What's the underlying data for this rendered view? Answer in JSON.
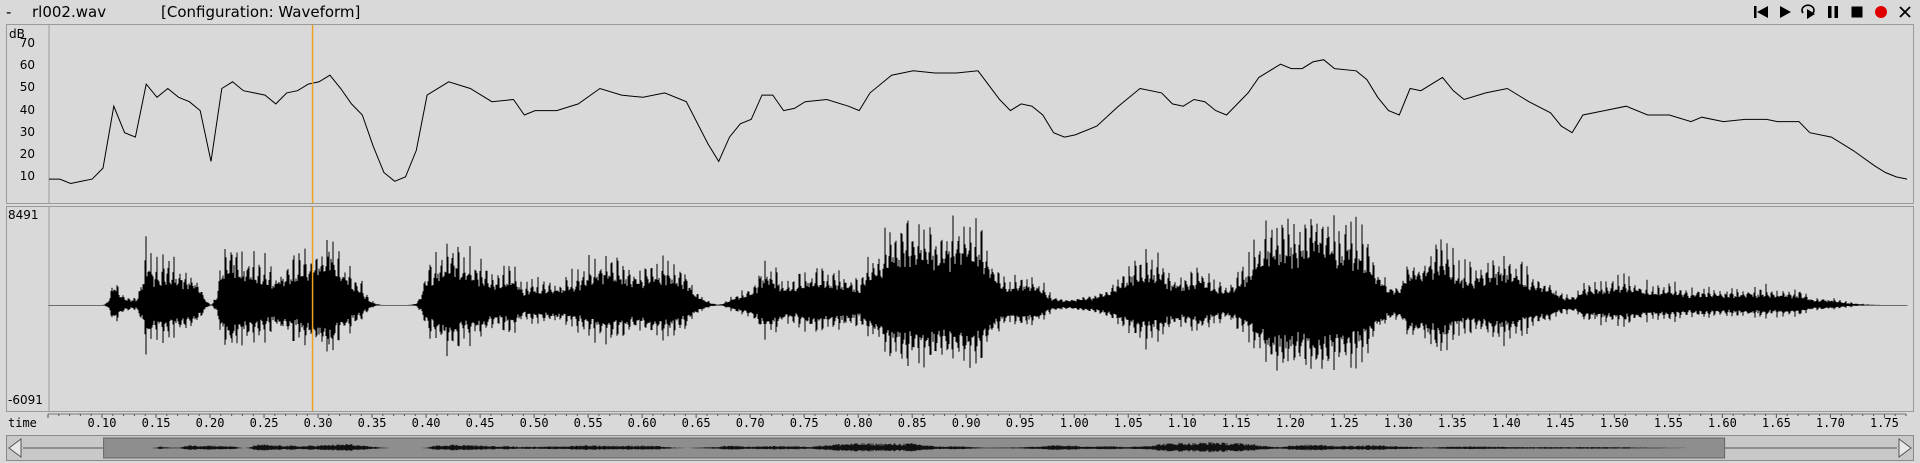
{
  "header": {
    "file_name": "rl002.wav",
    "configuration": "[Configuration: Waveform]",
    "menu_glyph": "-"
  },
  "controls": [
    {
      "name": "skip-to-start-icon"
    },
    {
      "name": "play-icon"
    },
    {
      "name": "loop-play-icon"
    },
    {
      "name": "pause-icon"
    },
    {
      "name": "stop-icon"
    },
    {
      "name": "record-icon",
      "color": "#e00000"
    },
    {
      "name": "close-icon"
    }
  ],
  "energy_panel": {
    "unit_label": "dB",
    "y_ticks": [
      "70",
      "60",
      "50",
      "40",
      "30",
      "20",
      "10"
    ],
    "y_range": [
      0,
      76
    ],
    "curve": [
      [
        0.05,
        9
      ],
      [
        0.06,
        9
      ],
      [
        0.07,
        7
      ],
      [
        0.08,
        8
      ],
      [
        0.09,
        9
      ],
      [
        0.1,
        14
      ],
      [
        0.11,
        42
      ],
      [
        0.12,
        30
      ],
      [
        0.13,
        28
      ],
      [
        0.14,
        52
      ],
      [
        0.15,
        46
      ],
      [
        0.16,
        50
      ],
      [
        0.17,
        46
      ],
      [
        0.18,
        44
      ],
      [
        0.19,
        40
      ],
      [
        0.2,
        17
      ],
      [
        0.21,
        50
      ],
      [
        0.22,
        53
      ],
      [
        0.23,
        49
      ],
      [
        0.24,
        48
      ],
      [
        0.25,
        47
      ],
      [
        0.26,
        43
      ],
      [
        0.27,
        48
      ],
      [
        0.28,
        49
      ],
      [
        0.29,
        52
      ],
      [
        0.3,
        53
      ],
      [
        0.31,
        56
      ],
      [
        0.32,
        50
      ],
      [
        0.33,
        43
      ],
      [
        0.34,
        38
      ],
      [
        0.35,
        24
      ],
      [
        0.36,
        12
      ],
      [
        0.37,
        8
      ],
      [
        0.38,
        10
      ],
      [
        0.39,
        22
      ],
      [
        0.4,
        47
      ],
      [
        0.42,
        53
      ],
      [
        0.44,
        50
      ],
      [
        0.46,
        44
      ],
      [
        0.48,
        45
      ],
      [
        0.49,
        38
      ],
      [
        0.5,
        40
      ],
      [
        0.52,
        40
      ],
      [
        0.54,
        43
      ],
      [
        0.56,
        50
      ],
      [
        0.58,
        47
      ],
      [
        0.6,
        46
      ],
      [
        0.62,
        48
      ],
      [
        0.64,
        44
      ],
      [
        0.66,
        25
      ],
      [
        0.67,
        17
      ],
      [
        0.68,
        28
      ],
      [
        0.69,
        34
      ],
      [
        0.7,
        36
      ],
      [
        0.71,
        47
      ],
      [
        0.72,
        47
      ],
      [
        0.73,
        40
      ],
      [
        0.74,
        41
      ],
      [
        0.75,
        44
      ],
      [
        0.77,
        45
      ],
      [
        0.79,
        42
      ],
      [
        0.8,
        40
      ],
      [
        0.81,
        48
      ],
      [
        0.83,
        56
      ],
      [
        0.85,
        58
      ],
      [
        0.87,
        57
      ],
      [
        0.89,
        57
      ],
      [
        0.91,
        58
      ],
      [
        0.93,
        45
      ],
      [
        0.94,
        40
      ],
      [
        0.95,
        43
      ],
      [
        0.96,
        42
      ],
      [
        0.97,
        38
      ],
      [
        0.98,
        30
      ],
      [
        0.99,
        28
      ],
      [
        1.0,
        29
      ],
      [
        1.02,
        33
      ],
      [
        1.04,
        42
      ],
      [
        1.06,
        50
      ],
      [
        1.08,
        48
      ],
      [
        1.09,
        43
      ],
      [
        1.1,
        42
      ],
      [
        1.11,
        45
      ],
      [
        1.12,
        44
      ],
      [
        1.13,
        40
      ],
      [
        1.14,
        38
      ],
      [
        1.16,
        48
      ],
      [
        1.17,
        55
      ],
      [
        1.18,
        58
      ],
      [
        1.19,
        61
      ],
      [
        1.2,
        59
      ],
      [
        1.21,
        59
      ],
      [
        1.22,
        62
      ],
      [
        1.23,
        63
      ],
      [
        1.24,
        59
      ],
      [
        1.26,
        58
      ],
      [
        1.27,
        54
      ],
      [
        1.28,
        46
      ],
      [
        1.29,
        40
      ],
      [
        1.3,
        38
      ],
      [
        1.31,
        50
      ],
      [
        1.32,
        49
      ],
      [
        1.34,
        55
      ],
      [
        1.35,
        49
      ],
      [
        1.36,
        45
      ],
      [
        1.38,
        48
      ],
      [
        1.4,
        50
      ],
      [
        1.42,
        44
      ],
      [
        1.44,
        39
      ],
      [
        1.45,
        33
      ],
      [
        1.46,
        30
      ],
      [
        1.47,
        38
      ],
      [
        1.49,
        40
      ],
      [
        1.51,
        42
      ],
      [
        1.53,
        38
      ],
      [
        1.55,
        38
      ],
      [
        1.57,
        35
      ],
      [
        1.58,
        37
      ],
      [
        1.6,
        35
      ],
      [
        1.62,
        36
      ],
      [
        1.64,
        36
      ],
      [
        1.65,
        35
      ],
      [
        1.67,
        35
      ],
      [
        1.68,
        30
      ],
      [
        1.7,
        28
      ],
      [
        1.72,
        22
      ],
      [
        1.74,
        15
      ],
      [
        1.75,
        12
      ],
      [
        1.76,
        10
      ],
      [
        1.77,
        9
      ]
    ]
  },
  "waveform_panel": {
    "max_label": "8491",
    "min_label": "-6091",
    "max_value": 8491,
    "min_value": -6091
  },
  "time_axis": {
    "label": "time",
    "ticks": [
      "0.10",
      "0.15",
      "0.20",
      "0.25",
      "0.30",
      "0.35",
      "0.40",
      "0.45",
      "0.50",
      "0.55",
      "0.60",
      "0.65",
      "0.70",
      "0.75",
      "0.80",
      "0.85",
      "0.90",
      "0.95",
      "1.00",
      "1.05",
      "1.10",
      "1.15",
      "1.20",
      "1.25",
      "1.30",
      "1.35",
      "1.40",
      "1.45",
      "1.50",
      "1.55",
      "1.60",
      "1.65",
      "1.70",
      "1.75"
    ],
    "view_start": 0.05,
    "view_end": 1.77
  },
  "cursor": {
    "time": 0.294,
    "color": "#f0a020"
  },
  "scrollbar": {
    "thumb_start_fraction": 0.043,
    "thumb_end_fraction": 0.908
  }
}
